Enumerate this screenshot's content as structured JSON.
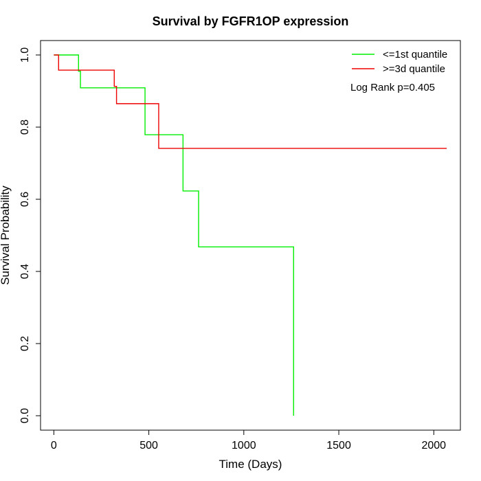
{
  "chart_data": {
    "type": "line",
    "title": "Survival by FGFR1OP expression",
    "xlabel": "Time (Days)",
    "ylabel": "Survival Probability",
    "xlim": [
      -70,
      2140
    ],
    "ylim": [
      -0.04,
      1.04
    ],
    "xticks": [
      0,
      500,
      1000,
      1500,
      2000
    ],
    "yticks": [
      0.0,
      0.2,
      0.4,
      0.6,
      0.8,
      1.0
    ],
    "xtick_labels": [
      "0",
      "500",
      "1000",
      "1500",
      "2000"
    ],
    "ytick_labels": [
      "0.0",
      "0.2",
      "0.4",
      "0.6",
      "0.8",
      "1.0"
    ],
    "grid": false,
    "legend_position": "top-right",
    "series": [
      {
        "name": "<=1st quantile",
        "color": "#00ee00",
        "x": [
          0,
          130,
          140,
          480,
          680,
          762,
          1262,
          1262
        ],
        "y": [
          1.0,
          0.955,
          0.909,
          0.779,
          0.623,
          0.468,
          0.468,
          0.0
        ]
      },
      {
        "name": ">=3d quantile",
        "color": "#ee0000",
        "x": [
          0,
          25,
          318,
          330,
          552,
          2068
        ],
        "y": [
          1.0,
          0.958,
          0.913,
          0.865,
          0.741,
          0.741
        ]
      }
    ],
    "annotation": "Log Rank p=0.405"
  }
}
